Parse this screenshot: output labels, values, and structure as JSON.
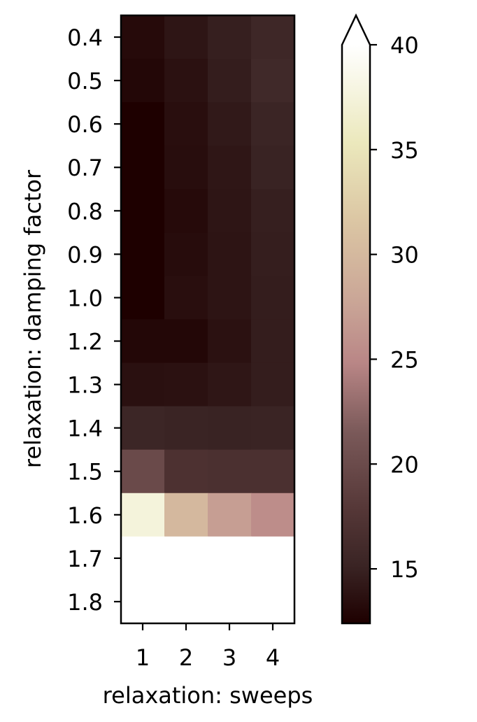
{
  "chart_data": {
    "type": "heatmap",
    "xlabel": "relaxation: sweeps",
    "ylabel": "relaxation: damping factor",
    "x_categories": [
      "1",
      "2",
      "3",
      "4"
    ],
    "y_categories": [
      "0.4",
      "0.5",
      "0.6",
      "0.7",
      "0.8",
      "0.9",
      "1.0",
      "1.2",
      "1.3",
      "1.4",
      "1.5",
      "1.6",
      "1.7",
      "1.8"
    ],
    "values": [
      [
        13.2,
        14.0,
        14.8,
        15.6
      ],
      [
        12.9,
        13.7,
        14.6,
        15.8
      ],
      [
        12.4,
        13.5,
        14.3,
        15.3
      ],
      [
        12.4,
        13.4,
        14.1,
        15.1
      ],
      [
        12.4,
        13.2,
        14.0,
        14.8
      ],
      [
        12.4,
        13.3,
        13.9,
        14.7
      ],
      [
        12.4,
        13.5,
        13.9,
        14.6
      ],
      [
        12.9,
        12.9,
        13.7,
        14.6
      ],
      [
        13.6,
        13.7,
        14.1,
        14.6
      ],
      [
        15.4,
        15.2,
        15.1,
        15.2
      ],
      [
        19.9,
        17.0,
        16.8,
        16.8
      ],
      [
        37.5,
        30.0,
        27.0,
        25.5
      ],
      [
        null,
        null,
        null,
        null
      ],
      [
        null,
        null,
        null,
        null
      ]
    ],
    "missing_color": "#ffffff",
    "colorbar": {
      "min": 12.4,
      "max": 40,
      "ticks": [
        "15",
        "20",
        "25",
        "30",
        "35",
        "40"
      ],
      "extend": "max",
      "colormap": "pink"
    }
  }
}
